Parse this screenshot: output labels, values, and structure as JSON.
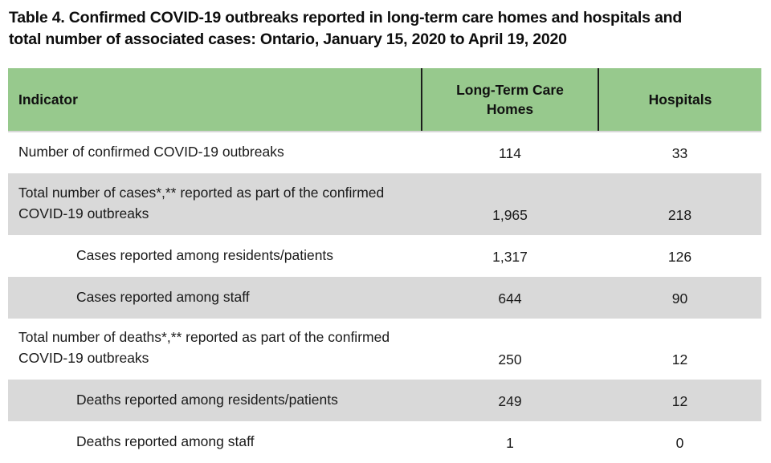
{
  "title": "Table 4. Confirmed COVID-19 outbreaks reported in long-term care homes and hospitals and\ntotal number of associated cases: Ontario, January 15, 2020 to April 19, 2020",
  "table": {
    "columns": {
      "indicator": "Indicator",
      "ltc": "Long-Term Care Homes",
      "hospitals": "Hospitals"
    },
    "rows": [
      {
        "indicator": "Number of confirmed COVID-19 outbreaks",
        "ltc": "114",
        "hospitals": "33",
        "indent": false,
        "shaded": false
      },
      {
        "indicator": "Total number of cases*,** reported as part of the confirmed COVID-19 outbreaks",
        "ltc": "1,965",
        "hospitals": "218",
        "indent": false,
        "shaded": true
      },
      {
        "indicator": "Cases reported among residents/patients",
        "ltc": "1,317",
        "hospitals": "126",
        "indent": true,
        "shaded": false
      },
      {
        "indicator": "Cases reported among staff",
        "ltc": "644",
        "hospitals": "90",
        "indent": true,
        "shaded": true
      },
      {
        "indicator": "Total number of deaths*,** reported as part of the confirmed COVID-19 outbreaks",
        "ltc": "250",
        "hospitals": "12",
        "indent": false,
        "shaded": false
      },
      {
        "indicator": "Deaths reported among residents/patients",
        "ltc": "249",
        "hospitals": "12",
        "indent": true,
        "shaded": true
      },
      {
        "indicator": "Deaths reported among staff",
        "ltc": "1",
        "hospitals": "0",
        "indent": true,
        "shaded": false
      }
    ]
  },
  "colors": {
    "header_green": "#97C98D",
    "shaded_row_gray": "#D9D9D9",
    "header_divider": "#1C1C1C",
    "text": "#1A1A1A"
  }
}
